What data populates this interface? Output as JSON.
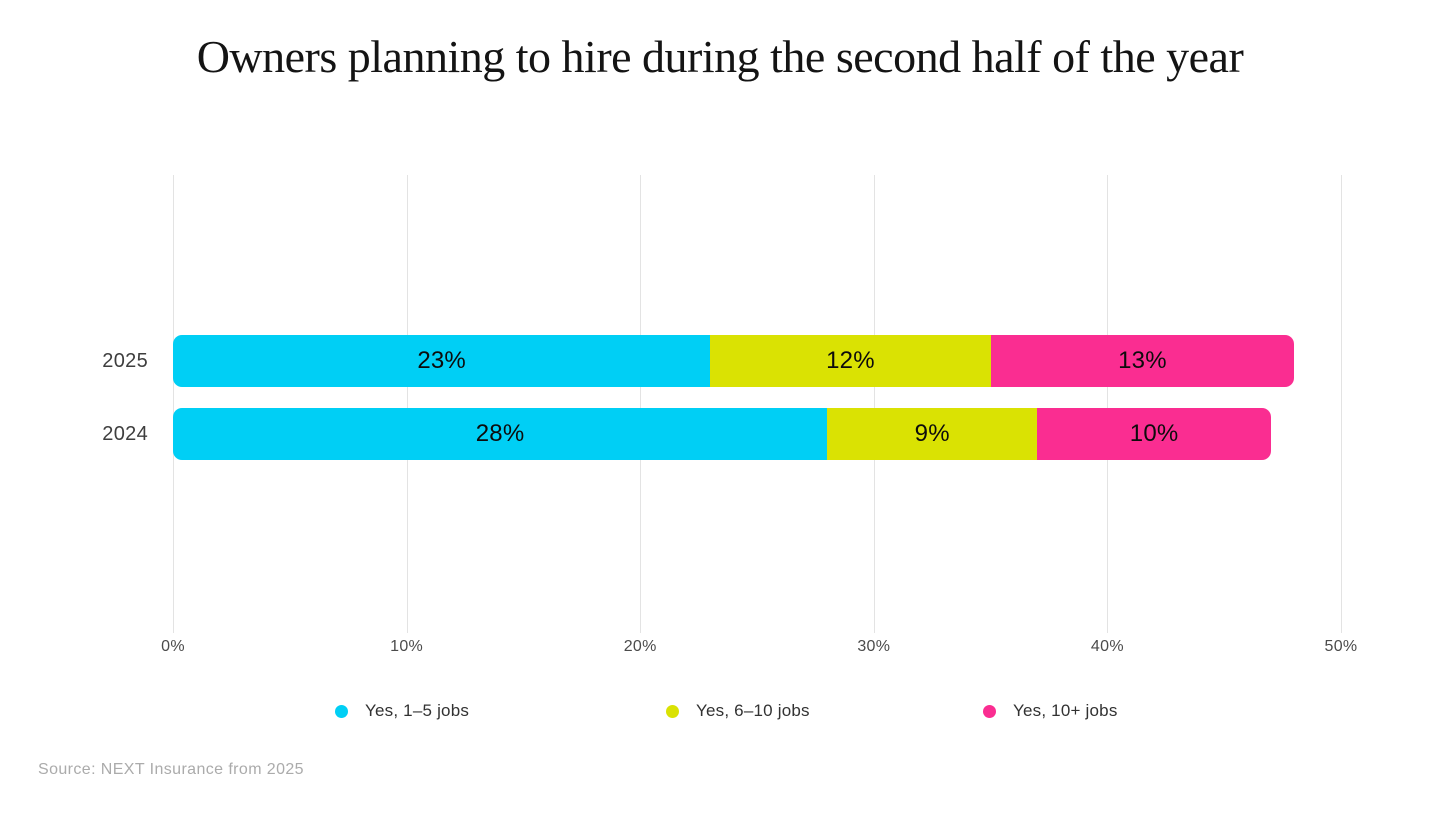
{
  "chart_data": {
    "type": "bar",
    "orientation": "horizontal",
    "stacked": true,
    "title": "Owners planning to hire during the second half of the year",
    "categories": [
      "2025",
      "2024"
    ],
    "series": [
      {
        "name": "Yes, 1–5 jobs",
        "color": "#00CFF5",
        "values": [
          23,
          28
        ]
      },
      {
        "name": "Yes, 6–10 jobs",
        "color": "#DAE203",
        "values": [
          12,
          9
        ]
      },
      {
        "name": "Yes, 10+ jobs",
        "color": "#FA2D91",
        "values": [
          13,
          10
        ]
      }
    ],
    "value_suffix": "%",
    "x_ticks": [
      "0%",
      "10%",
      "20%",
      "30%",
      "40%",
      "50%"
    ],
    "xlim": [
      0,
      50
    ],
    "grid": true,
    "legend_position": "bottom"
  },
  "source_note": "Source: NEXT Insurance from 2025"
}
